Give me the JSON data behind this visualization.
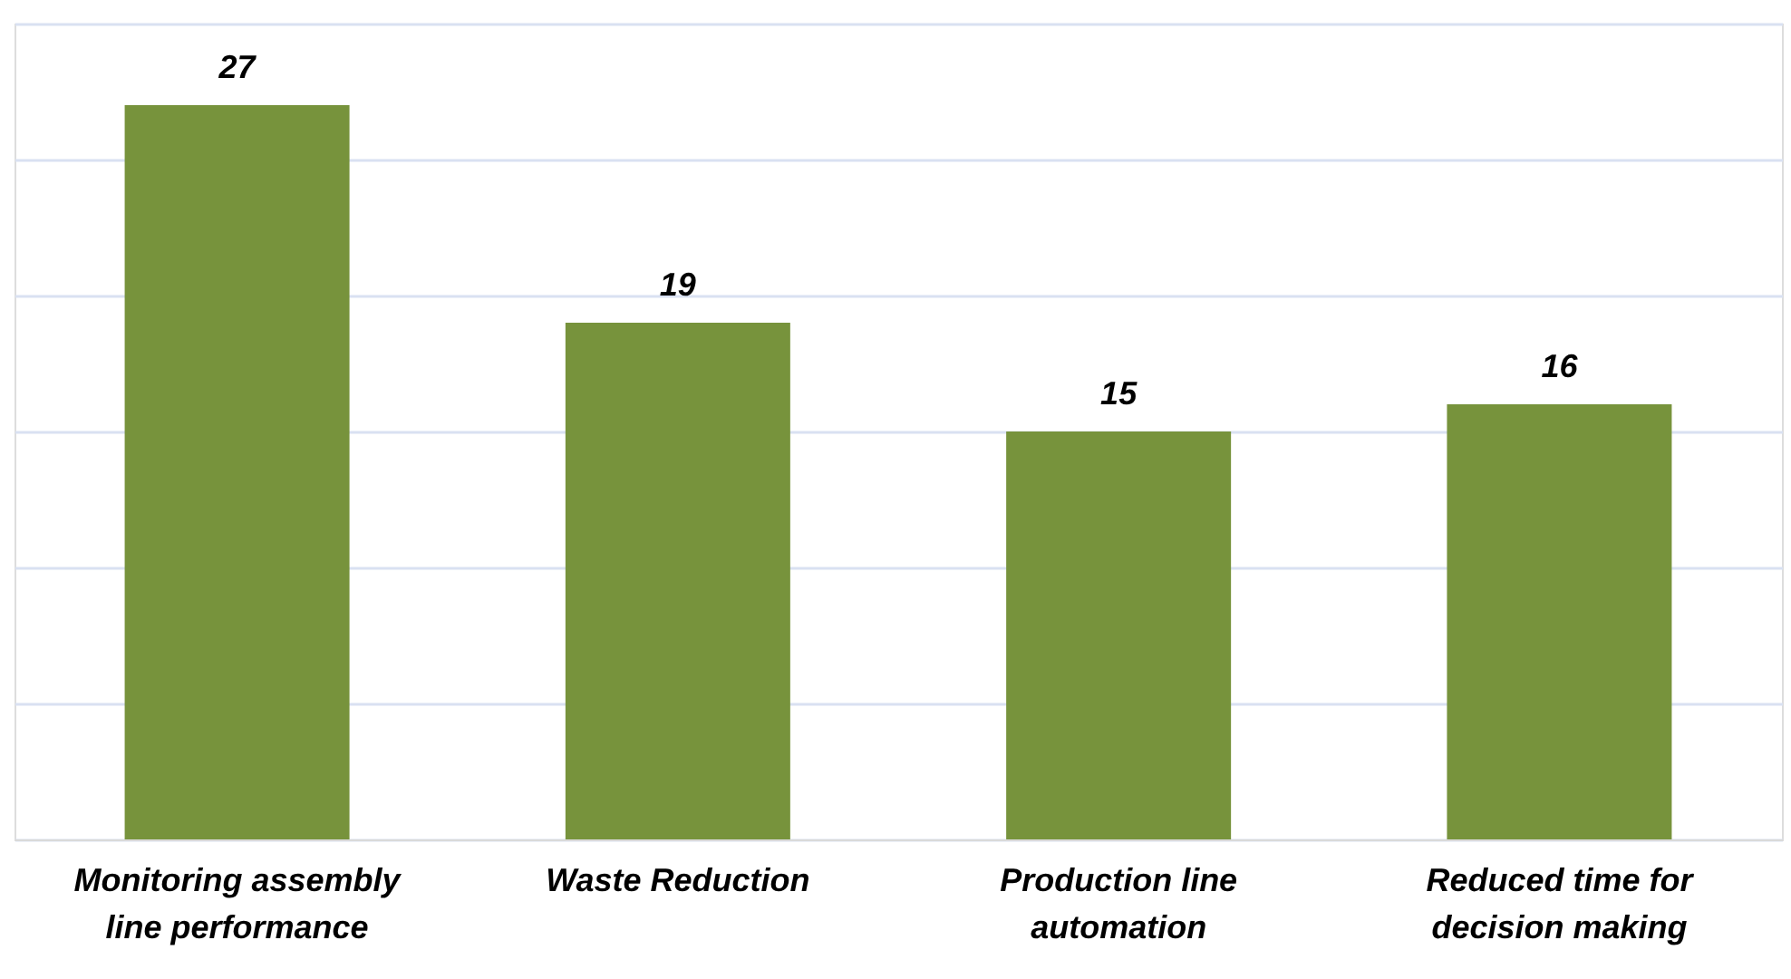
{
  "chart_data": {
    "type": "bar",
    "categories": [
      "Monitoring assembly line performance",
      "Waste Reduction",
      "Production line automation",
      "Reduced time for decision making"
    ],
    "values": [
      27,
      19,
      15,
      16
    ],
    "color": "#77933c",
    "ylim": [
      0,
      30
    ],
    "yticks": [
      {
        "value": 0,
        "label": null
      },
      {
        "value": 5,
        "label": null
      },
      {
        "value": 10,
        "label": null
      },
      {
        "value": 15,
        "label": null
      },
      {
        "value": 20,
        "label": null
      },
      {
        "value": 25,
        "label": null
      },
      {
        "value": 30,
        "label": null
      }
    ],
    "tick_labels": "x",
    "grid": "y",
    "data_labels": true
  }
}
